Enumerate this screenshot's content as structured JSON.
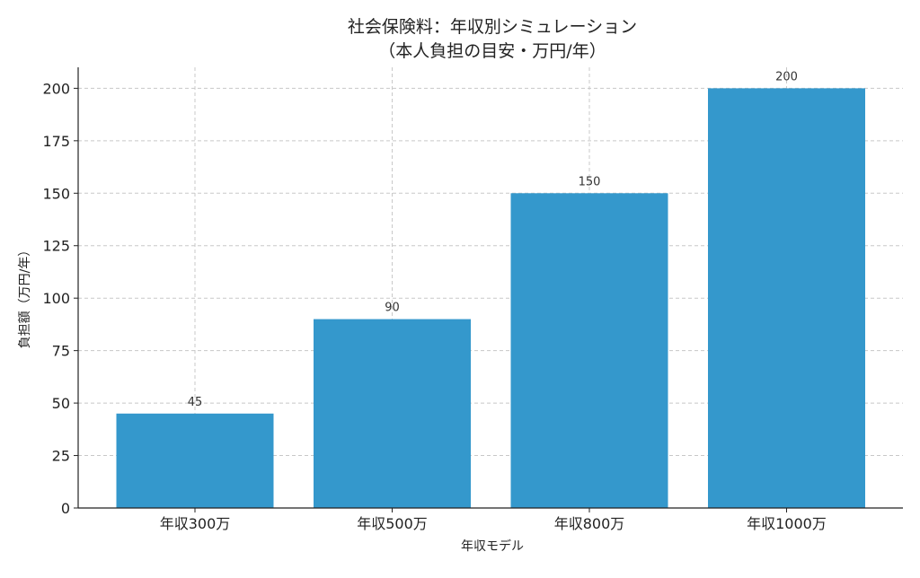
{
  "chart_data": {
    "type": "bar",
    "title": "社会保険料：年収別シミュレーション",
    "subtitle": "（本人負担の目安・万円/年）",
    "xlabel": "年収モデル",
    "ylabel": "負担額（万円/年）",
    "categories": [
      "年収300万",
      "年収500万",
      "年収800万",
      "年収1000万"
    ],
    "values": [
      45,
      90,
      150,
      200
    ],
    "data_labels": [
      "45",
      "90",
      "150",
      "200"
    ],
    "ylim": [
      0,
      210
    ],
    "yticks": [
      0,
      25,
      50,
      75,
      100,
      125,
      150,
      175,
      200
    ],
    "grid": true,
    "bar_color": "#3498cc"
  }
}
